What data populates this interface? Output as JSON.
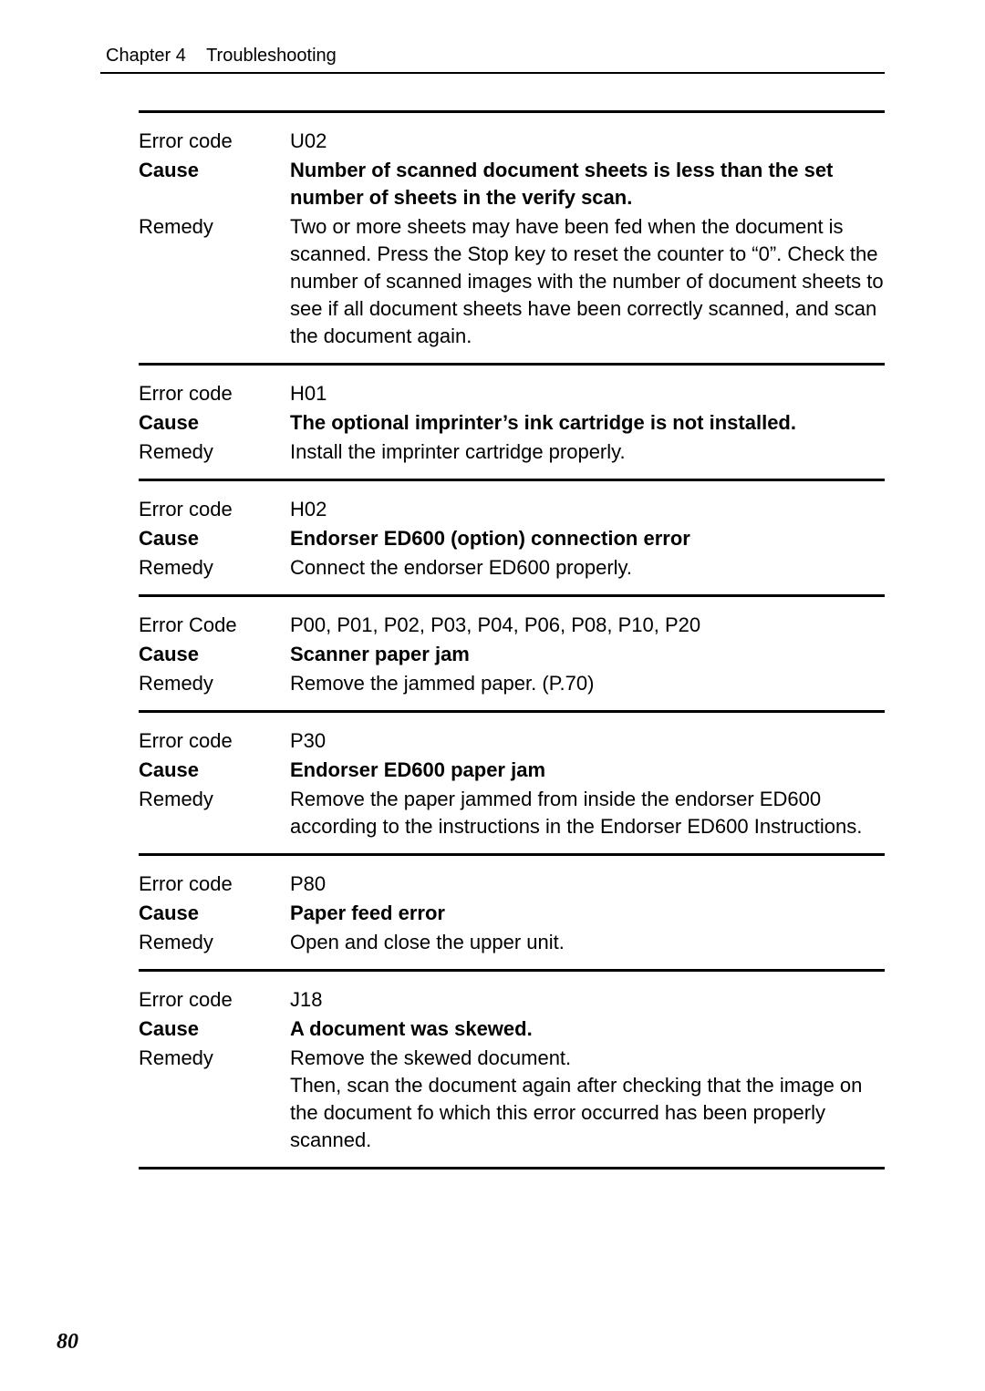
{
  "header": {
    "chapter": "Chapter 4",
    "title": "Troubleshooting"
  },
  "page_number": "80",
  "labels": {
    "error_code": "Error code",
    "error_code_cap": "Error Code",
    "cause": "Cause",
    "remedy": "Remedy"
  },
  "blocks": [
    {
      "code_label": "Error code",
      "code": "U02",
      "cause": "Number of scanned document sheets is less than the set number of sheets in the verify scan.",
      "remedy": "Two or more sheets may have been fed when the document is scanned. Press the Stop key to reset the counter to “0”. Check the number of scanned images with the number of document sheets to see if all document sheets have been correctly scanned, and scan the document again."
    },
    {
      "code_label": "Error code",
      "code": "H01",
      "cause": "The optional imprinter’s ink cartridge is not installed.",
      "remedy": "Install the imprinter cartridge properly."
    },
    {
      "code_label": "Error code",
      "code": "H02",
      "cause": "Endorser ED600 (option) connection error",
      "remedy": "Connect the endorser ED600 properly."
    },
    {
      "code_label": "Error Code",
      "code": "P00, P01, P02, P03, P04, P06, P08, P10, P20",
      "cause": "Scanner paper jam",
      "remedy": "Remove the jammed paper. (P.70)"
    },
    {
      "code_label": "Error code",
      "code": "P30",
      "cause": "Endorser ED600 paper jam",
      "remedy": "Remove the paper jammed from inside the endorser ED600 according to the instructions in the Endorser ED600 Instructions."
    },
    {
      "code_label": "Error code",
      "code": "P80",
      "cause": "Paper feed error",
      "remedy": "Open and close the upper unit."
    },
    {
      "code_label": "Error code",
      "code": "J18",
      "cause": "A document was skewed.",
      "remedy": "Remove the skewed document.\nThen, scan the document again after checking that the image on the document fo which this error occurred has been properly scanned."
    }
  ]
}
